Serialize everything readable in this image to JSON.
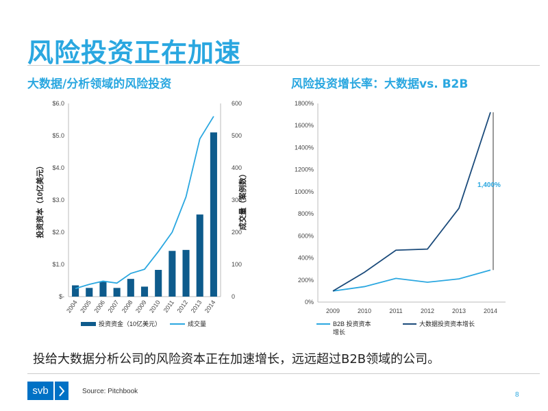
{
  "slide_title": "风险投资正在加速",
  "chart_data": [
    {
      "type": "bar",
      "title": "大数据/分析领域的风险投资",
      "categories": [
        "2004",
        "2005",
        "2006",
        "2007",
        "2008",
        "2009",
        "2010",
        "2011",
        "2012",
        "2013",
        "2014"
      ],
      "ylabel": "投资资本（10亿美元）",
      "y2label": "成交量（案例数）",
      "ylim": [
        0,
        6
      ],
      "y2lim": [
        0,
        600
      ],
      "y_ticks": [
        "$-",
        "$1.0",
        "$2.0",
        "$3.0",
        "$4.0",
        "$5.0",
        "$6.0"
      ],
      "y2_ticks": [
        "0",
        "100",
        "200",
        "300",
        "400",
        "500",
        "600"
      ],
      "series": [
        {
          "name": "投资资金（10亿美元）",
          "type": "bar",
          "axis": "left",
          "color": "#0e5b8c",
          "values": [
            0.35,
            0.27,
            0.47,
            0.27,
            0.55,
            0.31,
            0.83,
            1.42,
            1.45,
            2.55,
            5.1
          ]
        },
        {
          "name": "成交量",
          "type": "line",
          "axis": "right",
          "color": "#2aa7e0",
          "values": [
            25,
            38,
            48,
            42,
            72,
            85,
            140,
            200,
            310,
            490,
            560
          ]
        }
      ],
      "legend": "bottom"
    },
    {
      "type": "line",
      "title": "风险投资增长率：大数据vs. B2B",
      "categories": [
        "2009",
        "2010",
        "2011",
        "2012",
        "2013",
        "2014"
      ],
      "ylim": [
        0,
        1800
      ],
      "y_ticks": [
        "0%",
        "200%",
        "400%",
        "600%",
        "800%",
        "1000%",
        "1200%",
        "1400%",
        "1600%",
        "1800%"
      ],
      "series": [
        {
          "name": "B2B 投资资本增长",
          "color": "#2aa7e0",
          "values": [
            100,
            140,
            215,
            180,
            210,
            290
          ]
        },
        {
          "name": "大数据投资资本增长",
          "color": "#1a4a7a",
          "values": [
            100,
            270,
            470,
            480,
            850,
            1720
          ]
        }
      ],
      "annotation": {
        "text": "1,400%",
        "color": "#2aa7e0"
      },
      "legend": "bottom"
    }
  ],
  "bottom_note": "投给大数据分析公司的风险资本正在加速增长，远远超过B2B领域的公司。",
  "footer": {
    "logo_text": "svb",
    "source": "Source: Pitchbook",
    "page": "8"
  }
}
